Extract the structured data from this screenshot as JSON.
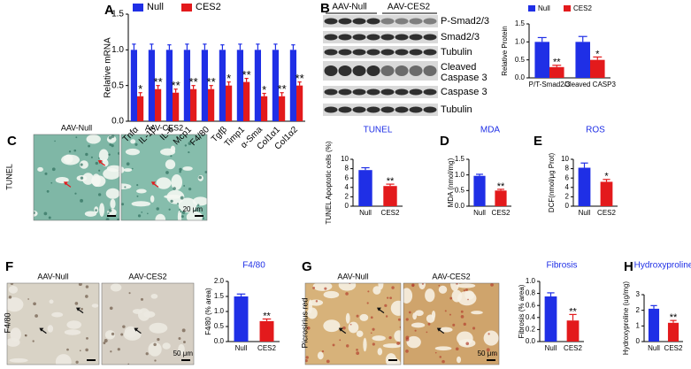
{
  "panel_letters": [
    "A",
    "B",
    "C",
    "D",
    "E",
    "F",
    "G",
    "H"
  ],
  "blot": {
    "groups": [
      "AAV-Null",
      "AAV-CES2"
    ],
    "bands": [
      "P-Smad2/3",
      "Smad2/3",
      "Tubulin",
      "Cleaved",
      "Caspase 3",
      "Caspase 3",
      "Tubulin"
    ]
  },
  "images": [
    {
      "titles": [
        "AAV-Null",
        "AAV-CES2"
      ],
      "stain": "TUNEL",
      "scale": "20 μm"
    },
    {
      "titles": [
        "AAV-Null",
        "AAV-CES2"
      ],
      "stain": "F4/80",
      "scale": "50 μm"
    },
    {
      "titles": [
        "AAV-Null",
        "AAV-CES2"
      ],
      "stain": "Picrosirius red",
      "scale": "50 μm"
    }
  ],
  "chart_data": [
    {
      "type": "bar",
      "ylabel": "Relative mRNA",
      "categories": [
        "Tnfα",
        "IL-1β",
        "IL-6",
        "Mcp1",
        "F4/80",
        "Tgfβ",
        "Timp1",
        "α-Sma",
        "Col1α1",
        "Col1α2"
      ],
      "series": [
        {
          "name": "Null",
          "color": "#1f2fe6",
          "values": [
            1.0,
            1.0,
            1.0,
            1.0,
            1.0,
            1.0,
            1.0,
            1.0,
            1.0,
            1.0
          ],
          "errors": [
            0.08,
            0.08,
            0.07,
            0.08,
            0.08,
            0.07,
            0.08,
            0.08,
            0.08,
            0.07
          ]
        },
        {
          "name": "CES2",
          "color": "#e31a1c",
          "values": [
            0.35,
            0.45,
            0.4,
            0.45,
            0.45,
            0.5,
            0.55,
            0.35,
            0.35,
            0.5
          ],
          "errors": [
            0.05,
            0.05,
            0.05,
            0.05,
            0.05,
            0.05,
            0.05,
            0.04,
            0.05,
            0.05
          ],
          "annotations": [
            "*",
            "**",
            "**",
            "**",
            "**",
            "*",
            "**",
            "*",
            "**",
            "**"
          ]
        }
      ],
      "ylim": [
        0,
        1.5
      ],
      "yticks": [
        {
          "value": 0,
          "label": "0.0"
        },
        {
          "value": 0.5,
          "label": "0.5"
        },
        {
          "value": 1,
          "label": "1.0"
        },
        {
          "value": 1.5,
          "label": "1.5"
        }
      ]
    },
    {
      "type": "bar",
      "ylabel": "Relative Protein",
      "categories": [
        "P/T-Smad2/3",
        "Cleaved CASP3"
      ],
      "series": [
        {
          "name": "Null",
          "color": "#1f2fe6",
          "values": [
            1.0,
            1.0
          ],
          "errors": [
            0.12,
            0.15
          ]
        },
        {
          "name": "CES2",
          "color": "#e31a1c",
          "values": [
            0.3,
            0.5
          ],
          "errors": [
            0.05,
            0.08
          ],
          "annotations": [
            "**",
            "*"
          ]
        }
      ],
      "ylim": [
        0,
        1.5
      ],
      "yticks": [
        {
          "value": 0,
          "label": "0.0"
        },
        {
          "value": 0.5,
          "label": "0.5"
        },
        {
          "value": 1,
          "label": "1.0"
        },
        {
          "value": 1.5,
          "label": "1.5"
        }
      ]
    },
    {
      "type": "bar",
      "title": "TUNEL",
      "ylabel": "TUNEL Apoptotic cells (%)",
      "categories": [
        "Null",
        "CES2"
      ],
      "values": [
        7.7,
        4.3
      ],
      "errors": [
        0.5,
        0.4
      ],
      "colors": [
        "#1f2fe6",
        "#e31a1c"
      ],
      "annotation": "**",
      "ylim": [
        0,
        10
      ],
      "yticks": [
        0,
        2,
        4,
        6,
        8,
        10
      ]
    },
    {
      "type": "bar",
      "title": "MDA",
      "ylabel": "MDA (nmol/mg)",
      "categories": [
        "Null",
        "CES2"
      ],
      "values": [
        0.97,
        0.5
      ],
      "errors": [
        0.05,
        0.04
      ],
      "colors": [
        "#1f2fe6",
        "#e31a1c"
      ],
      "annotation": "**",
      "ylim": [
        0,
        1.5
      ],
      "yticks": [
        {
          "value": 0,
          "label": "0.0"
        },
        {
          "value": 0.5,
          "label": "0.5"
        },
        {
          "value": 1,
          "label": "1.0"
        },
        {
          "value": 1.5,
          "label": "1.5"
        }
      ]
    },
    {
      "type": "bar",
      "title": "ROS",
      "ylabel": "DCF(nmol/μg Prot)",
      "categories": [
        "Null",
        "CES2"
      ],
      "values": [
        8.2,
        5.2
      ],
      "errors": [
        1.0,
        0.5
      ],
      "colors": [
        "#1f2fe6",
        "#e31a1c"
      ],
      "annotation": "*",
      "ylim": [
        0,
        10
      ],
      "yticks": [
        0,
        2,
        4,
        6,
        8,
        10
      ]
    },
    {
      "type": "bar",
      "title": "F4/80",
      "ylabel": "F4/80 (% area)",
      "categories": [
        "Null",
        "CES2"
      ],
      "values": [
        1.5,
        0.68
      ],
      "errors": [
        0.08,
        0.07
      ],
      "colors": [
        "#1f2fe6",
        "#e31a1c"
      ],
      "annotation": "**",
      "ylim": [
        0,
        2
      ],
      "yticks": [
        {
          "value": 0,
          "label": "0.0"
        },
        {
          "value": 0.5,
          "label": "0.5"
        },
        {
          "value": 1,
          "label": "1.0"
        },
        {
          "value": 1.5,
          "label": "1.5"
        },
        {
          "value": 2,
          "label": "2.0"
        }
      ]
    },
    {
      "type": "bar",
      "title": "Fibrosis",
      "ylabel": "Fibrosis (% area)",
      "categories": [
        "Null",
        "CES2"
      ],
      "values": [
        0.75,
        0.35
      ],
      "errors": [
        0.06,
        0.1
      ],
      "colors": [
        "#1f2fe6",
        "#e31a1c"
      ],
      "annotation": "**",
      "ylim": [
        0,
        1
      ],
      "yticks": [
        {
          "value": 0,
          "label": "0.0"
        },
        0.2,
        0.4,
        0.6,
        0.8,
        {
          "value": 1,
          "label": "1.0"
        }
      ]
    },
    {
      "type": "bar",
      "title": "Hydroxyproline",
      "ylabel": "Hydroxyproline (ug/mg)",
      "categories": [
        "Null",
        "CES2"
      ],
      "values": [
        2.1,
        1.2
      ],
      "errors": [
        0.2,
        0.15
      ],
      "colors": [
        "#1f2fe6",
        "#e31a1c"
      ],
      "annotation": "**",
      "ylim": [
        0,
        3
      ],
      "yticks": [
        0,
        1,
        2,
        3
      ]
    }
  ]
}
